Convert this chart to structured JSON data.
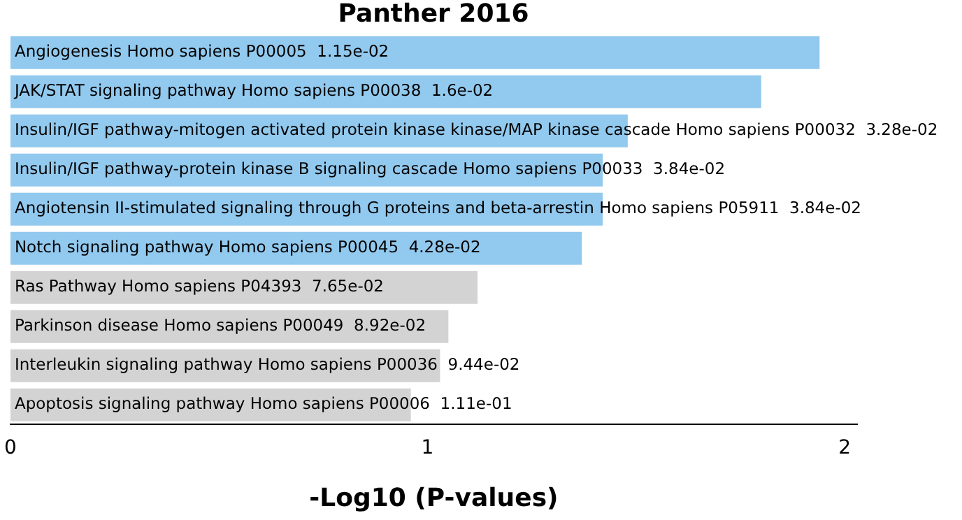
{
  "chart_data": {
    "type": "bar",
    "orientation": "horizontal",
    "title": "Panther 2016",
    "xlabel": "-Log10 (P-values)",
    "categories": [
      "Angiogenesis Homo sapiens P00005  1.15e-02",
      "JAK/STAT signaling pathway Homo sapiens P00038  1.6e-02",
      "Insulin/IGF pathway-mitogen activated protein kinase kinase/MAP kinase cascade Homo sapiens P00032  3.28e-02",
      "Insulin/IGF pathway-protein kinase B signaling cascade Homo sapiens P00033  3.84e-02",
      "Angiotensin II-stimulated signaling through G proteins and beta-arrestin Homo sapiens P05911  3.84e-02",
      "Notch signaling pathway Homo sapiens P00045  4.28e-02",
      "Ras Pathway Homo sapiens P04393  7.65e-02",
      "Parkinson disease Homo sapiens P00049  8.92e-02",
      "Interleukin signaling pathway Homo sapiens P00036  9.44e-02",
      "Apoptosis signaling pathway Homo sapiens P00006  1.11e-01"
    ],
    "values": [
      1.94,
      1.8,
      1.48,
      1.42,
      1.42,
      1.37,
      1.12,
      1.05,
      1.03,
      0.96
    ],
    "colors": [
      "#92c9ee",
      "#92c9ee",
      "#92c9ee",
      "#92c9ee",
      "#92c9ee",
      "#92c9ee",
      "#d3d3d3",
      "#d3d3d3",
      "#d3d3d3",
      "#d3d3d3"
    ],
    "xlim": [
      0,
      2.03
    ],
    "xticks": [
      0,
      1,
      2
    ],
    "grid": false,
    "legend": false
  }
}
